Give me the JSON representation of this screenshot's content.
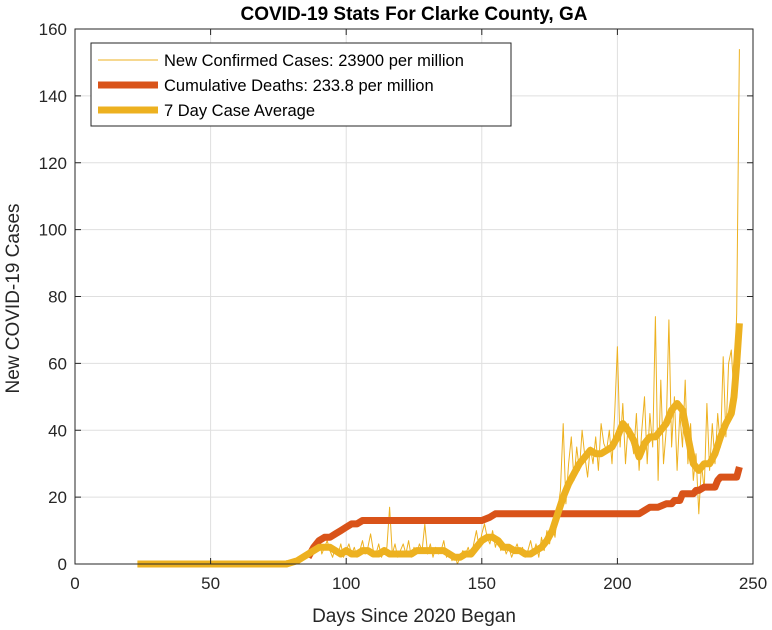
{
  "chart_data": {
    "type": "line",
    "title": "COVID-19 Stats For Clarke County, GA",
    "xlabel": "Days Since 2020 Began",
    "ylabel": "New COVID-19 Cases",
    "xlim": [
      0,
      250
    ],
    "ylim": [
      0,
      160
    ],
    "xticks": [
      0,
      50,
      100,
      150,
      200,
      250
    ],
    "yticks": [
      0,
      20,
      40,
      60,
      80,
      100,
      120,
      140,
      160
    ],
    "grid": true,
    "legend_position": "top-left",
    "series": [
      {
        "name": "New Confirmed Cases: 23900 per million",
        "color": "#EDB120",
        "style": "thin",
        "points": [
          [
            23,
            0
          ],
          [
            75,
            0
          ],
          [
            78,
            1
          ],
          [
            80,
            0
          ],
          [
            82,
            2
          ],
          [
            84,
            1
          ],
          [
            86,
            3
          ],
          [
            87,
            2
          ],
          [
            88,
            6
          ],
          [
            89,
            4
          ],
          [
            90,
            8
          ],
          [
            91,
            3
          ],
          [
            92,
            5
          ],
          [
            93,
            7
          ],
          [
            94,
            4
          ],
          [
            95,
            2
          ],
          [
            96,
            5
          ],
          [
            97,
            3
          ],
          [
            98,
            6
          ],
          [
            99,
            2
          ],
          [
            100,
            4
          ],
          [
            101,
            6
          ],
          [
            102,
            3
          ],
          [
            103,
            5
          ],
          [
            104,
            2
          ],
          [
            105,
            4
          ],
          [
            106,
            7
          ],
          [
            107,
            3
          ],
          [
            108,
            5
          ],
          [
            109,
            9
          ],
          [
            110,
            4
          ],
          [
            111,
            3
          ],
          [
            112,
            6
          ],
          [
            113,
            2
          ],
          [
            114,
            4
          ],
          [
            115,
            5
          ],
          [
            116,
            17
          ],
          [
            117,
            3
          ],
          [
            118,
            6
          ],
          [
            119,
            2
          ],
          [
            120,
            4
          ],
          [
            121,
            6
          ],
          [
            122,
            3
          ],
          [
            123,
            7
          ],
          [
            124,
            2
          ],
          [
            125,
            5
          ],
          [
            126,
            3
          ],
          [
            127,
            6
          ],
          [
            128,
            4
          ],
          [
            129,
            12
          ],
          [
            130,
            3
          ],
          [
            131,
            6
          ],
          [
            132,
            2
          ],
          [
            133,
            5
          ],
          [
            134,
            3
          ],
          [
            135,
            4
          ],
          [
            136,
            7
          ],
          [
            137,
            2
          ],
          [
            138,
            4
          ],
          [
            139,
            1
          ],
          [
            140,
            3
          ],
          [
            141,
            0
          ],
          [
            142,
            2
          ],
          [
            143,
            4
          ],
          [
            144,
            3
          ],
          [
            145,
            5
          ],
          [
            146,
            2
          ],
          [
            147,
            6
          ],
          [
            148,
            10
          ],
          [
            149,
            5
          ],
          [
            150,
            9
          ],
          [
            151,
            12
          ],
          [
            152,
            8
          ],
          [
            153,
            6
          ],
          [
            154,
            10
          ],
          [
            155,
            5
          ],
          [
            156,
            8
          ],
          [
            157,
            4
          ],
          [
            158,
            6
          ],
          [
            159,
            3
          ],
          [
            160,
            5
          ],
          [
            161,
            2
          ],
          [
            162,
            4
          ],
          [
            163,
            6
          ],
          [
            164,
            3
          ],
          [
            165,
            5
          ],
          [
            166,
            2
          ],
          [
            167,
            4
          ],
          [
            168,
            7
          ],
          [
            169,
            3
          ],
          [
            170,
            6
          ],
          [
            171,
            2
          ],
          [
            172,
            8
          ],
          [
            173,
            4
          ],
          [
            174,
            10
          ],
          [
            175,
            6
          ],
          [
            176,
            12
          ],
          [
            177,
            8
          ],
          [
            178,
            16
          ],
          [
            179,
            22
          ],
          [
            180,
            42
          ],
          [
            181,
            18
          ],
          [
            182,
            30
          ],
          [
            183,
            38
          ],
          [
            184,
            25
          ],
          [
            185,
            35
          ],
          [
            186,
            28
          ],
          [
            187,
            40
          ],
          [
            188,
            32
          ],
          [
            189,
            26
          ],
          [
            190,
            35
          ],
          [
            191,
            30
          ],
          [
            192,
            38
          ],
          [
            193,
            28
          ],
          [
            194,
            42
          ],
          [
            195,
            36
          ],
          [
            196,
            34
          ],
          [
            197,
            40
          ],
          [
            198,
            30
          ],
          [
            199,
            45
          ],
          [
            200,
            65
          ],
          [
            201,
            35
          ],
          [
            202,
            48
          ],
          [
            203,
            30
          ],
          [
            204,
            42
          ],
          [
            205,
            38
          ],
          [
            206,
            33
          ],
          [
            207,
            45
          ],
          [
            208,
            28
          ],
          [
            209,
            40
          ],
          [
            210,
            50
          ],
          [
            211,
            30
          ],
          [
            212,
            45
          ],
          [
            213,
            35
          ],
          [
            214,
            74
          ],
          [
            215,
            25
          ],
          [
            216,
            55
          ],
          [
            217,
            30
          ],
          [
            218,
            40
          ],
          [
            219,
            73
          ],
          [
            220,
            35
          ],
          [
            221,
            50
          ],
          [
            222,
            28
          ],
          [
            223,
            45
          ],
          [
            224,
            35
          ],
          [
            225,
            55
          ],
          [
            226,
            30
          ],
          [
            227,
            42
          ],
          [
            228,
            25
          ],
          [
            229,
            33
          ],
          [
            230,
            15
          ],
          [
            231,
            30
          ],
          [
            232,
            22
          ],
          [
            233,
            48
          ],
          [
            234,
            28
          ],
          [
            235,
            42
          ],
          [
            236,
            30
          ],
          [
            237,
            45
          ],
          [
            238,
            35
          ],
          [
            239,
            62
          ],
          [
            240,
            38
          ],
          [
            241,
            60
          ],
          [
            242,
            64
          ],
          [
            243,
            50
          ],
          [
            244,
            75
          ],
          [
            245,
            154
          ]
        ]
      },
      {
        "name": "Cumulative Deaths: 233.8 per million",
        "color": "#D95319",
        "style": "thick",
        "points": [
          [
            86,
            2
          ],
          [
            88,
            5
          ],
          [
            90,
            7
          ],
          [
            92,
            8
          ],
          [
            94,
            8
          ],
          [
            96,
            9
          ],
          [
            98,
            10
          ],
          [
            100,
            11
          ],
          [
            102,
            12
          ],
          [
            104,
            12
          ],
          [
            106,
            13
          ],
          [
            108,
            13
          ],
          [
            150,
            13
          ],
          [
            153,
            14
          ],
          [
            155,
            15
          ],
          [
            200,
            15
          ],
          [
            208,
            15
          ],
          [
            210,
            16
          ],
          [
            212,
            17
          ],
          [
            215,
            17
          ],
          [
            218,
            18
          ],
          [
            220,
            18
          ],
          [
            221,
            19
          ],
          [
            223,
            19
          ],
          [
            224,
            21
          ],
          [
            228,
            21
          ],
          [
            229,
            22
          ],
          [
            230,
            22
          ],
          [
            232,
            23
          ],
          [
            236,
            23
          ],
          [
            237,
            25
          ],
          [
            238,
            26
          ],
          [
            244,
            26
          ],
          [
            245,
            29
          ]
        ]
      },
      {
        "name": "7 Day Case Average",
        "color": "#EDB120",
        "style": "thick",
        "points": [
          [
            23,
            0
          ],
          [
            78,
            0
          ],
          [
            80,
            0.5
          ],
          [
            82,
            1
          ],
          [
            84,
            2
          ],
          [
            86,
            3
          ],
          [
            88,
            4
          ],
          [
            90,
            5
          ],
          [
            92,
            5
          ],
          [
            94,
            5
          ],
          [
            96,
            4
          ],
          [
            98,
            3
          ],
          [
            100,
            4
          ],
          [
            102,
            3
          ],
          [
            104,
            3
          ],
          [
            106,
            4
          ],
          [
            108,
            4
          ],
          [
            110,
            3
          ],
          [
            112,
            3
          ],
          [
            114,
            4
          ],
          [
            116,
            3
          ],
          [
            118,
            3
          ],
          [
            120,
            3
          ],
          [
            122,
            3
          ],
          [
            124,
            3
          ],
          [
            126,
            4
          ],
          [
            128,
            4
          ],
          [
            130,
            4
          ],
          [
            132,
            4
          ],
          [
            134,
            4
          ],
          [
            136,
            4
          ],
          [
            138,
            3
          ],
          [
            140,
            2
          ],
          [
            142,
            2
          ],
          [
            144,
            3
          ],
          [
            146,
            3
          ],
          [
            148,
            5
          ],
          [
            150,
            7
          ],
          [
            152,
            8
          ],
          [
            154,
            8
          ],
          [
            156,
            7
          ],
          [
            158,
            5
          ],
          [
            160,
            5
          ],
          [
            162,
            4
          ],
          [
            164,
            4
          ],
          [
            166,
            3
          ],
          [
            168,
            3
          ],
          [
            170,
            4
          ],
          [
            172,
            5
          ],
          [
            174,
            7
          ],
          [
            176,
            10
          ],
          [
            178,
            15
          ],
          [
            180,
            20
          ],
          [
            182,
            24
          ],
          [
            184,
            27
          ],
          [
            186,
            30
          ],
          [
            188,
            32
          ],
          [
            190,
            34
          ],
          [
            192,
            33
          ],
          [
            194,
            33
          ],
          [
            196,
            34
          ],
          [
            198,
            35
          ],
          [
            200,
            38
          ],
          [
            202,
            42
          ],
          [
            204,
            40
          ],
          [
            206,
            37
          ],
          [
            208,
            32
          ],
          [
            210,
            36
          ],
          [
            212,
            38
          ],
          [
            214,
            38
          ],
          [
            216,
            40
          ],
          [
            218,
            42
          ],
          [
            220,
            46
          ],
          [
            222,
            48
          ],
          [
            224,
            46
          ],
          [
            226,
            38
          ],
          [
            228,
            30
          ],
          [
            230,
            28
          ],
          [
            232,
            30
          ],
          [
            234,
            30
          ],
          [
            236,
            33
          ],
          [
            238,
            38
          ],
          [
            240,
            42
          ],
          [
            242,
            45
          ],
          [
            243,
            50
          ],
          [
            244,
            60
          ],
          [
            245,
            72
          ]
        ]
      }
    ]
  }
}
